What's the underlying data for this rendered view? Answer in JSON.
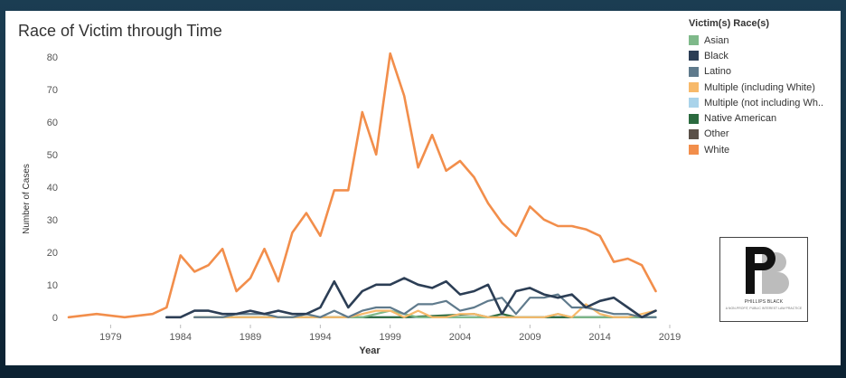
{
  "chart_data": {
    "type": "line",
    "title": "Race of Victim through Time",
    "xlabel": "Year",
    "ylabel": "Number of Cases",
    "xlim": [
      1976,
      2019
    ],
    "ylim": [
      -2,
      83
    ],
    "x_ticks": [
      "1979",
      "1984",
      "1989",
      "1994",
      "1999",
      "2004",
      "2009",
      "2014",
      "2019"
    ],
    "y_ticks": [
      "0",
      "10",
      "20",
      "30",
      "40",
      "50",
      "60",
      "70",
      "80"
    ],
    "legend_title": "Victim(s) Race(s)",
    "legend_position": "right",
    "series": [
      {
        "name": "Asian",
        "color": "#7fb98a",
        "x": [
          1985,
          1986,
          1987,
          1988,
          1989,
          1990,
          1991,
          1992,
          1993,
          1994,
          1995,
          1996,
          1997,
          1998,
          1999,
          2000,
          2001,
          2002,
          2003,
          2004,
          2005,
          2006,
          2007,
          2008,
          2009,
          2010,
          2011,
          2012,
          2013,
          2014,
          2015,
          2016,
          2017,
          2018
        ],
        "y": [
          0,
          0,
          0,
          0,
          0,
          0,
          0,
          0,
          0,
          0,
          0,
          0,
          0,
          1,
          2,
          1,
          0,
          0,
          0,
          0,
          0,
          0,
          0,
          0,
          0,
          0,
          1,
          0,
          0,
          0,
          0,
          0,
          0,
          0
        ]
      },
      {
        "name": "Black",
        "color": "#2c3e55",
        "x": [
          1983,
          1984,
          1985,
          1986,
          1987,
          1988,
          1989,
          1990,
          1991,
          1992,
          1993,
          1994,
          1995,
          1996,
          1997,
          1998,
          1999,
          2000,
          2001,
          2002,
          2003,
          2004,
          2005,
          2006,
          2007,
          2008,
          2009,
          2010,
          2011,
          2012,
          2013,
          2014,
          2015,
          2016,
          2017,
          2018
        ],
        "y": [
          0,
          0,
          2,
          2,
          1,
          1,
          2,
          1,
          2,
          1,
          1,
          3,
          11,
          3,
          8,
          10,
          10,
          12,
          10,
          9,
          11,
          7,
          8,
          10,
          1,
          8,
          9,
          7,
          6,
          7,
          3,
          5,
          6,
          3,
          0,
          2
        ]
      },
      {
        "name": "Latino",
        "color": "#5f7a8c",
        "x": [
          1985,
          1986,
          1987,
          1988,
          1989,
          1990,
          1991,
          1992,
          1993,
          1994,
          1995,
          1996,
          1997,
          1998,
          1999,
          2000,
          2001,
          2002,
          2003,
          2004,
          2005,
          2006,
          2007,
          2008,
          2009,
          2010,
          2011,
          2012,
          2013,
          2014,
          2015,
          2016,
          2017,
          2018
        ],
        "y": [
          0,
          0,
          0,
          1,
          1,
          1,
          0,
          0,
          1,
          0,
          2,
          0,
          2,
          3,
          3,
          1,
          4,
          4,
          5,
          2,
          3,
          5,
          6,
          1,
          6,
          6,
          7,
          3,
          3,
          2,
          1,
          1,
          0,
          0
        ]
      },
      {
        "name": "Multiple (including White)",
        "color": "#f7b96a",
        "x": [
          1985,
          1986,
          1987,
          1988,
          1989,
          1990,
          1991,
          1992,
          1993,
          1994,
          1995,
          1996,
          1997,
          1998,
          1999,
          2000,
          2001,
          2002,
          2003,
          2004,
          2005,
          2006,
          2007,
          2008,
          2009,
          2010,
          2011,
          2012,
          2013,
          2014,
          2015,
          2016,
          2017,
          2018
        ],
        "y": [
          0,
          0,
          0,
          0,
          0,
          0,
          0,
          0,
          0,
          0,
          0,
          0,
          1,
          2,
          2,
          0,
          2,
          0,
          0,
          1,
          1,
          0,
          0,
          0,
          0,
          0,
          1,
          0,
          4,
          1,
          0,
          0,
          1,
          2
        ]
      },
      {
        "name": "Multiple (not including Wh..",
        "color": "#a9d3ea",
        "x": [
          1985,
          1990,
          1995,
          2000,
          2005,
          2010,
          2015,
          2018
        ],
        "y": [
          0,
          0,
          0,
          0,
          0,
          0,
          0,
          0
        ]
      },
      {
        "name": "Native American",
        "color": "#2b6a3f",
        "x": [
          1985,
          1990,
          1995,
          2000,
          2005,
          2006,
          2007,
          2008,
          2010,
          2015,
          2018
        ],
        "y": [
          0,
          0,
          0,
          0,
          1,
          0,
          1,
          0,
          0,
          0,
          0
        ]
      },
      {
        "name": "Other",
        "color": "#5a5048",
        "x": [
          1985,
          1990,
          1995,
          2000,
          2005,
          2010,
          2015,
          2018
        ],
        "y": [
          0,
          0,
          0,
          0,
          0,
          0,
          0,
          0
        ]
      },
      {
        "name": "White",
        "color": "#f28e4b",
        "x": [
          1976,
          1978,
          1980,
          1982,
          1983,
          1984,
          1985,
          1986,
          1987,
          1988,
          1989,
          1990,
          1991,
          1992,
          1993,
          1994,
          1995,
          1996,
          1997,
          1998,
          1999,
          2000,
          2001,
          2002,
          2003,
          2004,
          2005,
          2006,
          2007,
          2008,
          2009,
          2010,
          2011,
          2012,
          2013,
          2014,
          2015,
          2016,
          2017,
          2018
        ],
        "y": [
          0,
          1,
          0,
          1,
          3,
          19,
          14,
          16,
          21,
          8,
          12,
          21,
          11,
          26,
          32,
          25,
          39,
          39,
          63,
          50,
          81,
          68,
          46,
          56,
          45,
          48,
          43,
          35,
          29,
          25,
          34,
          30,
          28,
          28,
          27,
          25,
          17,
          18,
          16,
          8
        ]
      }
    ]
  },
  "logo": {
    "initials": "PB",
    "name": "PHILLIPS BLACK",
    "tagline": "A NON-PROFIT, PUBLIC INTEREST LAW PRACTICE"
  }
}
